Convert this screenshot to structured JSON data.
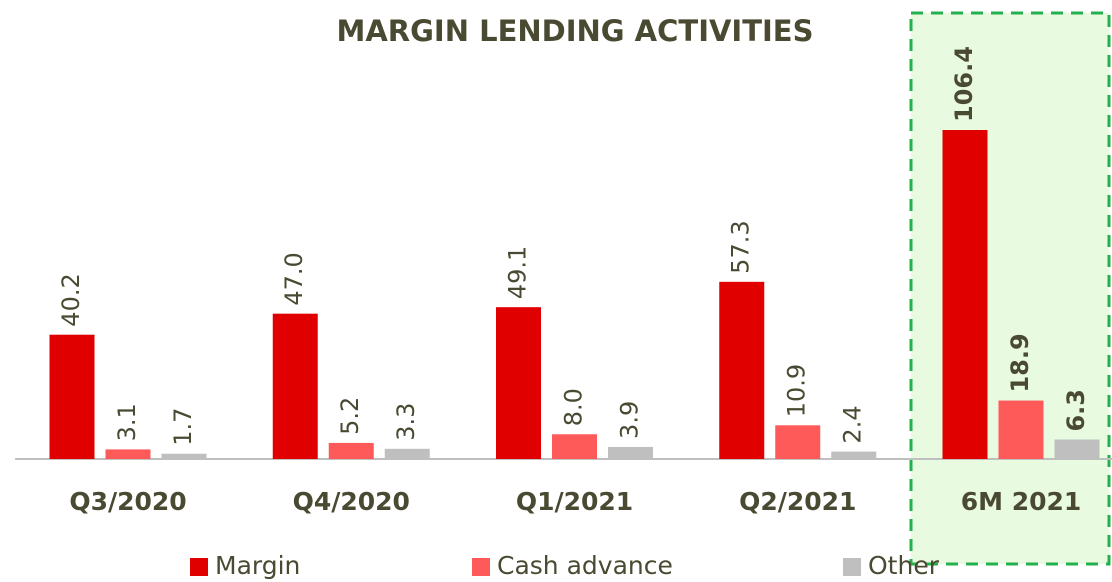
{
  "chart_data": {
    "type": "bar",
    "title": "MARGIN LENDING ACTIVITIES",
    "categories": [
      "Q3/2020",
      "Q4/2020",
      "Q1/2021",
      "Q2/2021",
      "6M 2021"
    ],
    "series": [
      {
        "name": "Margin",
        "color": "#e00000",
        "values": [
          40.2,
          47.0,
          49.1,
          57.3,
          106.4
        ],
        "value_labels": [
          "40.2",
          "47.0",
          "49.1",
          "57.3",
          "106.4"
        ]
      },
      {
        "name": "Cash advance",
        "color": "#ff5a5a",
        "values": [
          3.1,
          5.2,
          8.0,
          10.9,
          18.9
        ],
        "value_labels": [
          "3.1",
          "5.2",
          "8.0",
          "10.9",
          "18.9"
        ]
      },
      {
        "name": "Other",
        "color": "#bfbfbf",
        "values": [
          1.7,
          3.3,
          3.9,
          2.4,
          6.3
        ],
        "value_labels": [
          "1.7",
          "3.3",
          "3.9",
          "2.4",
          "6.3"
        ]
      }
    ],
    "legend": "bottom"
  }
}
